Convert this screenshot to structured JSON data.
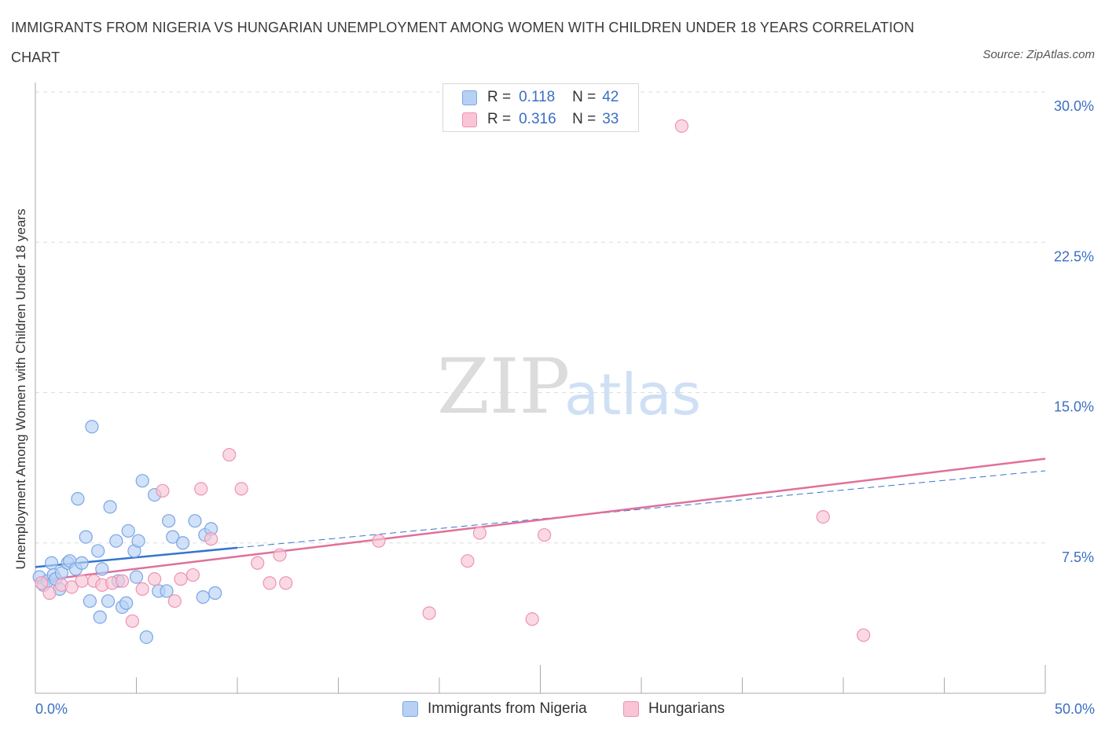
{
  "title": "IMMIGRANTS FROM NIGERIA VS HUNGARIAN UNEMPLOYMENT AMONG WOMEN WITH CHILDREN UNDER 18 YEARS CORRELATION CHART",
  "source": "Source: ZipAtlas.com",
  "watermark": {
    "zip": "ZIP",
    "atlas": "atlas"
  },
  "colors": {
    "blue_fill": "#b7d1f5",
    "blue_stroke": "#7aa6e6",
    "blue_line": "#3674cf",
    "pink_fill": "#f8c4d6",
    "pink_stroke": "#ee93b3",
    "pink_line": "#e0709a",
    "axis_label": "#3b6fc4"
  },
  "stats": {
    "row1": {
      "r_label": "R =",
      "r_value": "0.118",
      "n_label": "N =",
      "n_value": "42"
    },
    "row2": {
      "r_label": "R =",
      "r_value": "0.316",
      "n_label": "N =",
      "n_value": "33"
    }
  },
  "legend": {
    "series1": "Immigrants from Nigeria",
    "series2": "Hungarians"
  },
  "chart_data": {
    "type": "scatter",
    "title": "IMMIGRANTS FROM NIGERIA VS HUNGARIAN UNEMPLOYMENT AMONG WOMEN WITH CHILDREN UNDER 18 YEARS CORRELATION CHART",
    "xlabel": "",
    "ylabel": "Unemployment Among Women with Children Under 18 years",
    "xlim": [
      0,
      50
    ],
    "ylim": [
      0,
      30
    ],
    "x_tick_labels": [
      "0.0%",
      "50.0%"
    ],
    "y_ticks": [
      7.5,
      15,
      22.5,
      30
    ],
    "y_tick_labels": [
      "7.5%",
      "15.0%",
      "22.5%",
      "30.0%"
    ],
    "grid": true,
    "legend_position": "bottom-center",
    "series": [
      {
        "name": "Immigrants from Nigeria",
        "R": 0.118,
        "N": 42,
        "trend": {
          "solid_x": [
            0,
            10
          ],
          "dashed_x": [
            10,
            50
          ],
          "y_at_x0": 6.3,
          "slope": 0.096
        },
        "points": [
          {
            "x": 0.2,
            "y": 5.8
          },
          {
            "x": 0.4,
            "y": 5.4
          },
          {
            "x": 0.6,
            "y": 5.6
          },
          {
            "x": 0.8,
            "y": 6.5
          },
          {
            "x": 0.9,
            "y": 5.9
          },
          {
            "x": 1.0,
            "y": 5.7
          },
          {
            "x": 1.2,
            "y": 5.2
          },
          {
            "x": 1.3,
            "y": 6.0
          },
          {
            "x": 1.6,
            "y": 6.5
          },
          {
            "x": 1.7,
            "y": 6.6
          },
          {
            "x": 2.0,
            "y": 6.2
          },
          {
            "x": 2.1,
            "y": 9.7
          },
          {
            "x": 2.3,
            "y": 6.5
          },
          {
            "x": 2.5,
            "y": 7.8
          },
          {
            "x": 2.7,
            "y": 4.6
          },
          {
            "x": 2.8,
            "y": 13.3
          },
          {
            "x": 3.1,
            "y": 7.1
          },
          {
            "x": 3.2,
            "y": 3.8
          },
          {
            "x": 3.3,
            "y": 6.2
          },
          {
            "x": 3.6,
            "y": 4.6
          },
          {
            "x": 3.7,
            "y": 9.3
          },
          {
            "x": 4.0,
            "y": 7.6
          },
          {
            "x": 4.1,
            "y": 5.6
          },
          {
            "x": 4.3,
            "y": 4.3
          },
          {
            "x": 4.5,
            "y": 4.5
          },
          {
            "x": 4.6,
            "y": 8.1
          },
          {
            "x": 4.9,
            "y": 7.1
          },
          {
            "x": 5.0,
            "y": 5.8
          },
          {
            "x": 5.1,
            "y": 7.6
          },
          {
            "x": 5.3,
            "y": 10.6
          },
          {
            "x": 5.5,
            "y": 2.8
          },
          {
            "x": 5.9,
            "y": 9.9
          },
          {
            "x": 6.1,
            "y": 5.1
          },
          {
            "x": 6.5,
            "y": 5.1
          },
          {
            "x": 6.6,
            "y": 8.6
          },
          {
            "x": 6.8,
            "y": 7.8
          },
          {
            "x": 7.3,
            "y": 7.5
          },
          {
            "x": 7.9,
            "y": 8.6
          },
          {
            "x": 8.3,
            "y": 4.8
          },
          {
            "x": 8.4,
            "y": 7.9
          },
          {
            "x": 8.7,
            "y": 8.2
          },
          {
            "x": 8.9,
            "y": 5.0
          }
        ]
      },
      {
        "name": "Hungarians",
        "R": 0.316,
        "N": 33,
        "trend": {
          "solid_x": [
            0,
            50
          ],
          "y_at_x0": 5.6,
          "slope": 0.122
        },
        "points": [
          {
            "x": 0.3,
            "y": 5.5
          },
          {
            "x": 0.7,
            "y": 5.0
          },
          {
            "x": 1.3,
            "y": 5.4
          },
          {
            "x": 1.8,
            "y": 5.3
          },
          {
            "x": 2.3,
            "y": 5.6
          },
          {
            "x": 2.9,
            "y": 5.6
          },
          {
            "x": 3.3,
            "y": 5.4
          },
          {
            "x": 3.8,
            "y": 5.5
          },
          {
            "x": 4.3,
            "y": 5.6
          },
          {
            "x": 4.8,
            "y": 3.6
          },
          {
            "x": 5.3,
            "y": 5.2
          },
          {
            "x": 5.9,
            "y": 5.7
          },
          {
            "x": 6.3,
            "y": 10.1
          },
          {
            "x": 6.9,
            "y": 4.6
          },
          {
            "x": 7.2,
            "y": 5.7
          },
          {
            "x": 7.8,
            "y": 5.9
          },
          {
            "x": 8.2,
            "y": 10.2
          },
          {
            "x": 8.7,
            "y": 7.7
          },
          {
            "x": 9.6,
            "y": 11.9
          },
          {
            "x": 10.2,
            "y": 10.2
          },
          {
            "x": 11.0,
            "y": 6.5
          },
          {
            "x": 11.6,
            "y": 5.5
          },
          {
            "x": 12.1,
            "y": 6.9
          },
          {
            "x": 12.4,
            "y": 5.5
          },
          {
            "x": 17.0,
            "y": 7.6
          },
          {
            "x": 19.5,
            "y": 4.0
          },
          {
            "x": 21.4,
            "y": 6.6
          },
          {
            "x": 22.0,
            "y": 8.0
          },
          {
            "x": 24.6,
            "y": 3.7
          },
          {
            "x": 25.2,
            "y": 7.9
          },
          {
            "x": 32.0,
            "y": 28.3
          },
          {
            "x": 39.0,
            "y": 8.8
          },
          {
            "x": 41.0,
            "y": 2.9
          }
        ]
      }
    ]
  }
}
